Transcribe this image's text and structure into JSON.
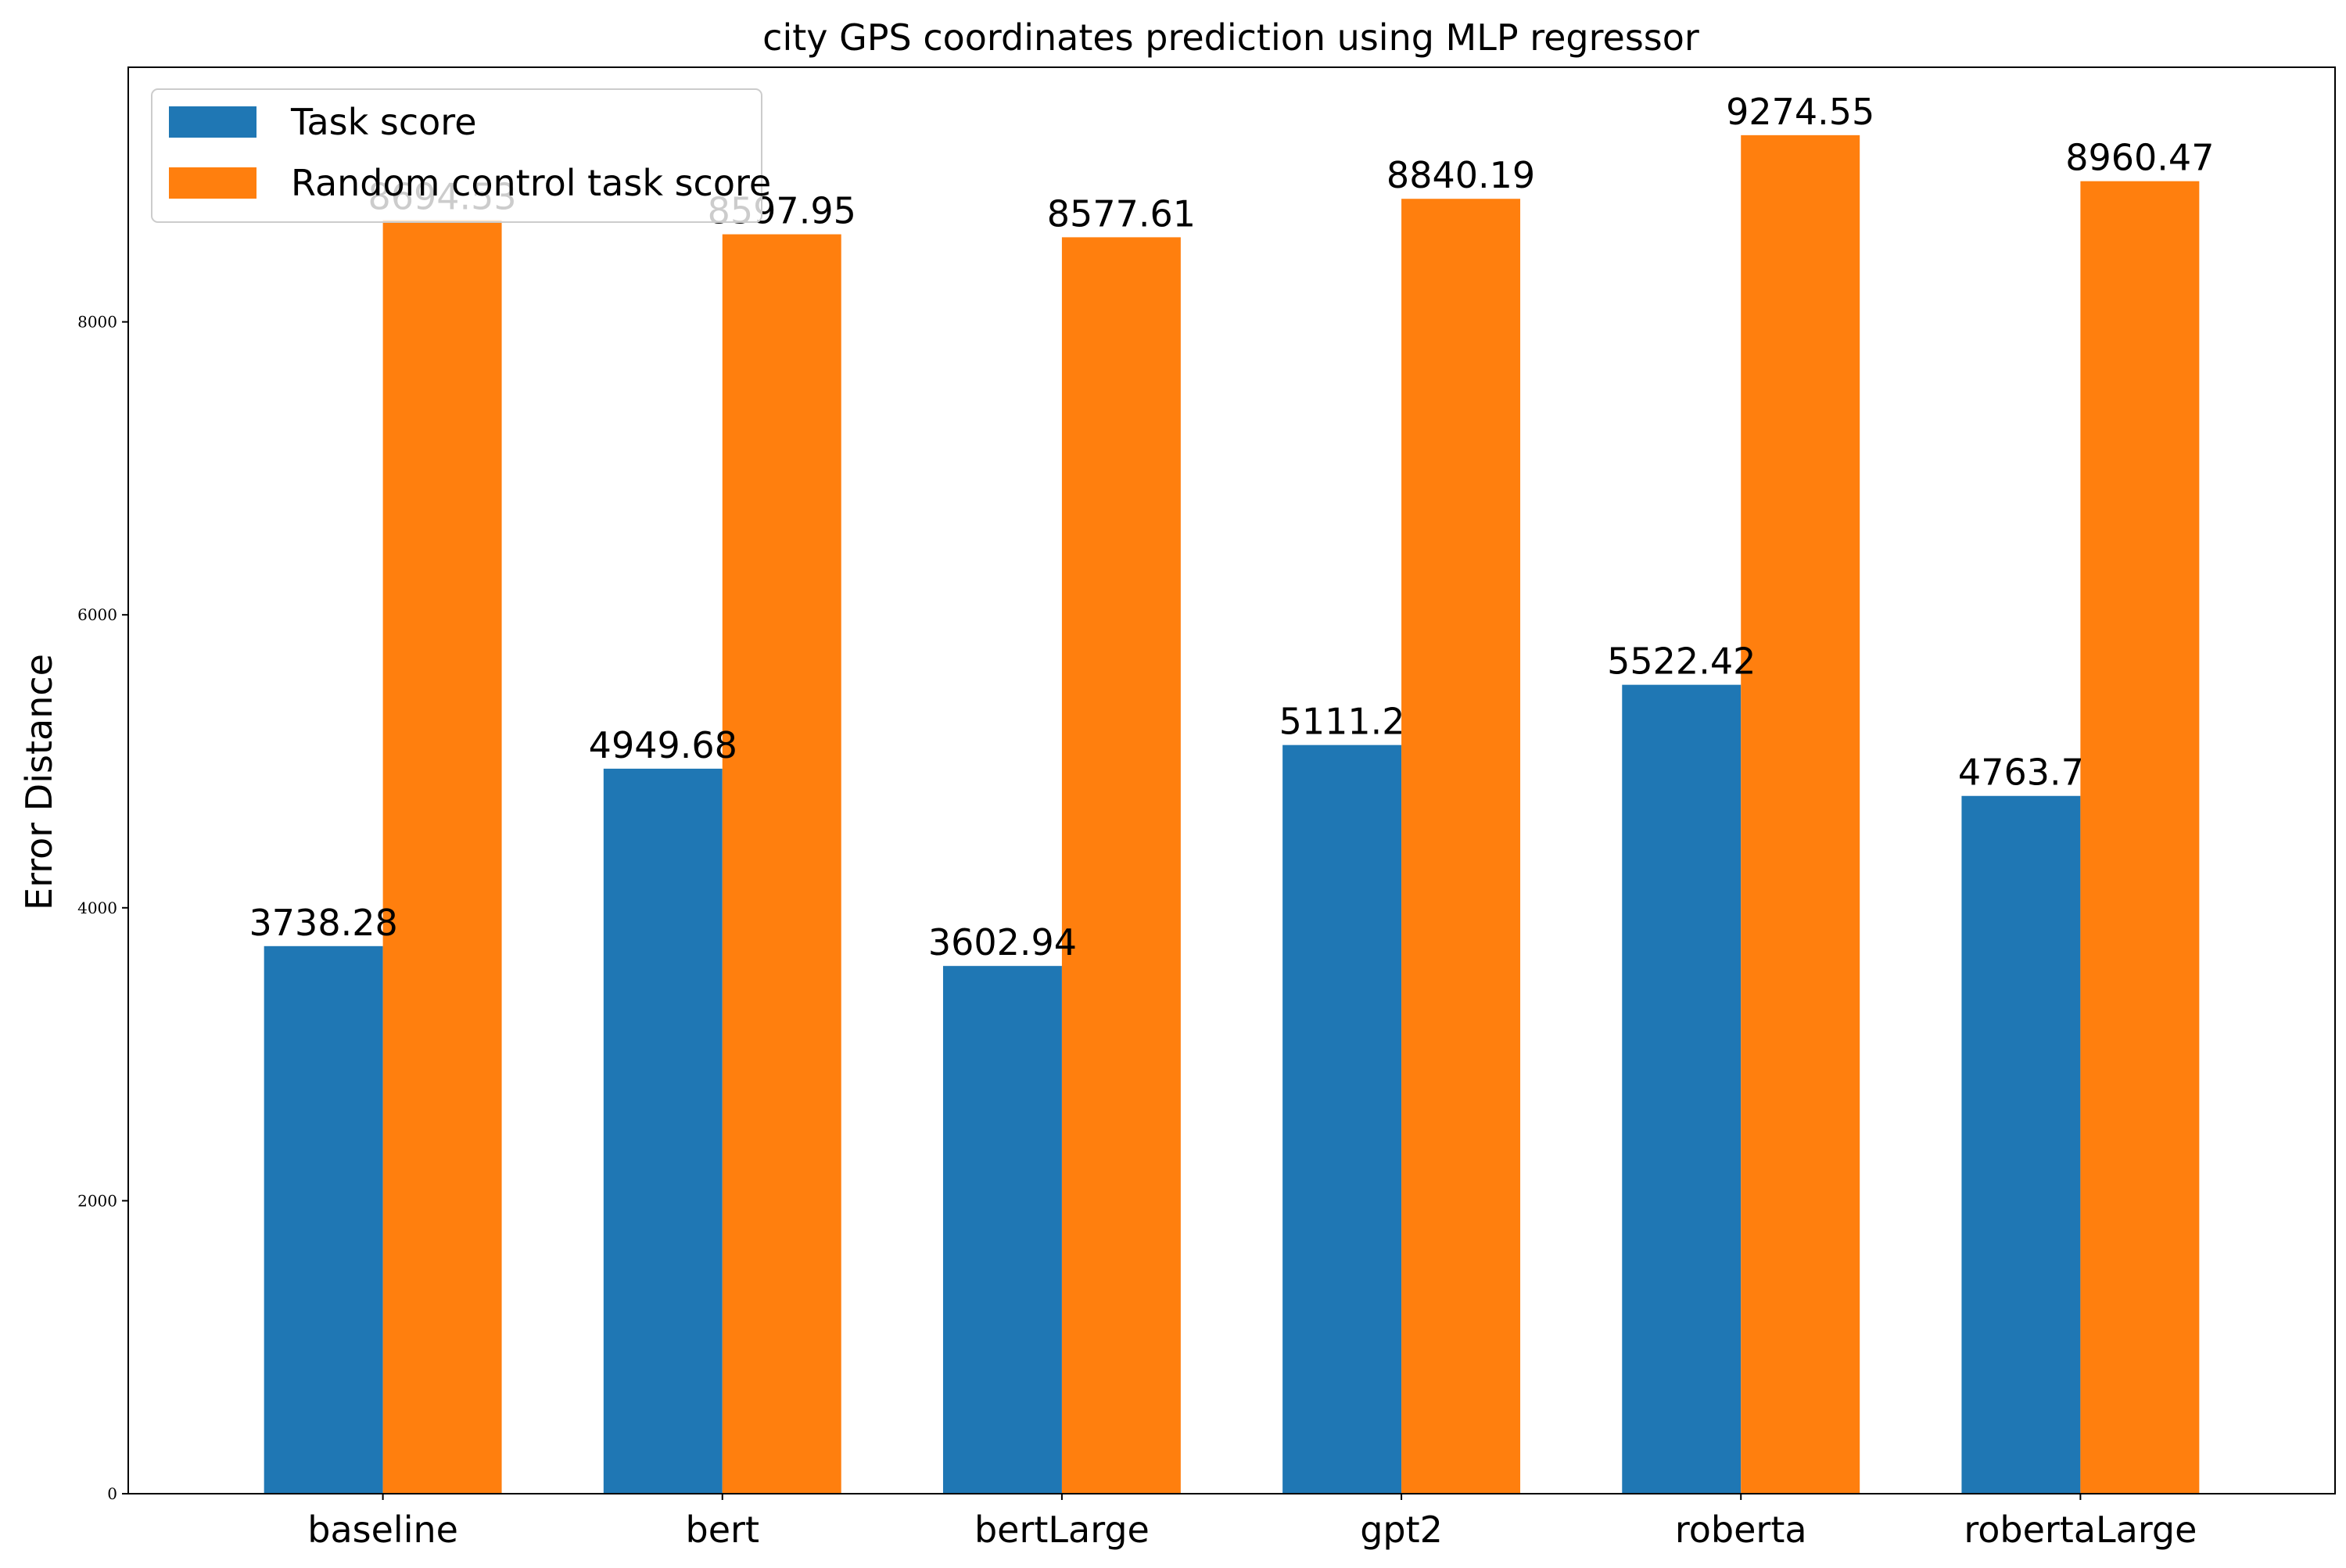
{
  "chart_data": {
    "type": "bar",
    "title": "city GPS coordinates prediction using MLP regressor",
    "xlabel": "",
    "ylabel": "Error Distance",
    "categories": [
      "baseline",
      "bert",
      "bertLarge",
      "gpt2",
      "roberta",
      "robertaLarge"
    ],
    "series": [
      {
        "name": "Task score",
        "color": "#1f77b4",
        "values": [
          3738.28,
          4949.68,
          3602.94,
          5111.2,
          5522.42,
          4763.7
        ],
        "labels": [
          "3738.28",
          "4949.68",
          "3602.94",
          "5111.2",
          "5522.42",
          "4763.7"
        ]
      },
      {
        "name": "Random control task score",
        "color": "#ff7f0e",
        "values": [
          8694.53,
          8597.95,
          8577.61,
          8840.19,
          9274.55,
          8960.47
        ],
        "labels": [
          "8694.53",
          "8597.95",
          "8577.61",
          "8840.19",
          "9274.55",
          "8960.47"
        ]
      }
    ],
    "ylim": [
      0,
      9738.28
    ],
    "yticks": [
      0,
      2000,
      4000,
      6000,
      8000
    ],
    "ytick_labels": [
      "0",
      "2000",
      "4000",
      "6000",
      "8000"
    ],
    "grid": false,
    "legend_position": "top-left"
  }
}
